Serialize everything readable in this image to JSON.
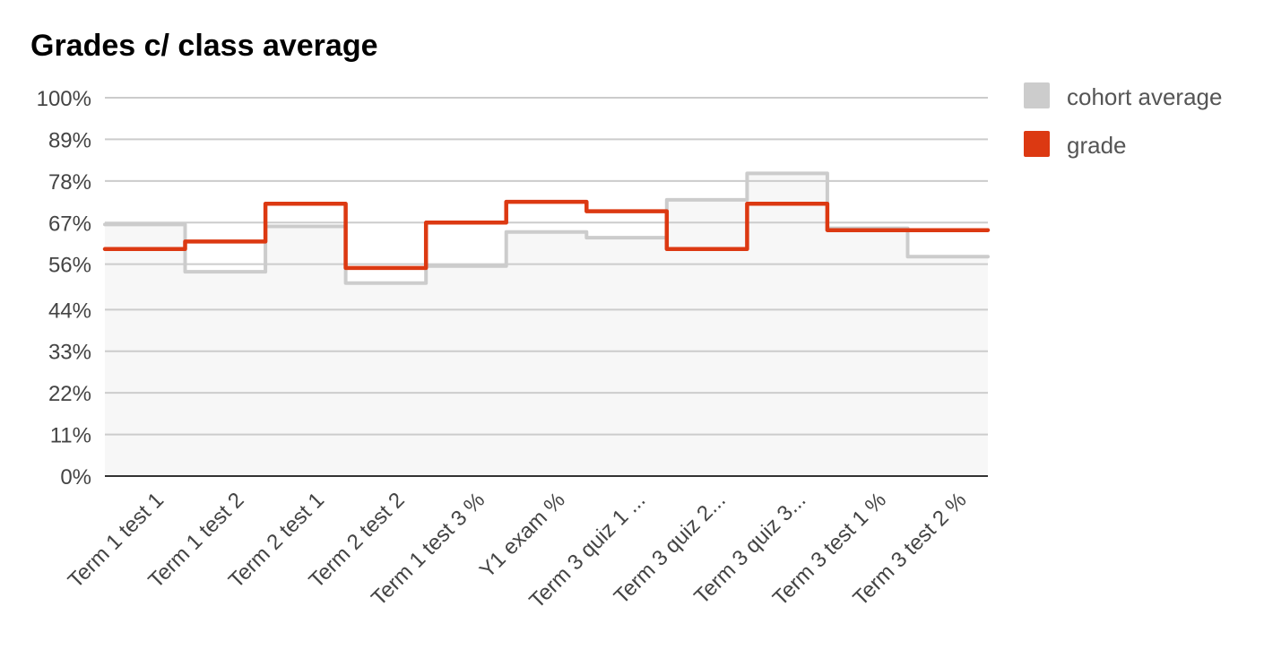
{
  "chart_data": {
    "type": "area",
    "step": true,
    "title": "Grades c/ class average",
    "xlabel": "",
    "ylabel": "",
    "categories": [
      "Term 1 test 1",
      "Term 1 test 2",
      "Term 2 test 1",
      "Term 2 test 2",
      "Term 1 test 3 %",
      "Y1 exam %",
      "Term 3 quiz 1 ...",
      "Term 3 quiz 2...",
      "Term 3 quiz 3...",
      "Term 3 test 1 %",
      "Term 3 test 2 %"
    ],
    "ylim": [
      0,
      100
    ],
    "yticks": [
      0,
      11,
      22,
      33,
      44,
      56,
      67,
      78,
      89,
      100
    ],
    "ytick_labels": [
      "0%",
      "11%",
      "22%",
      "33%",
      "44%",
      "56%",
      "67%",
      "78%",
      "89%",
      "100%"
    ],
    "grid": true,
    "legend_position": "right",
    "series": [
      {
        "name": "cohort average",
        "color": "#cccccc",
        "fill": "#f7f7f7",
        "values": [
          66.5,
          54,
          66,
          51,
          55.5,
          64.5,
          63,
          73,
          80,
          65.5,
          58
        ]
      },
      {
        "name": "grade",
        "color": "#dc3912",
        "values": [
          60,
          62,
          72,
          55,
          67,
          72.5,
          70,
          60,
          72,
          65,
          65
        ]
      }
    ]
  }
}
